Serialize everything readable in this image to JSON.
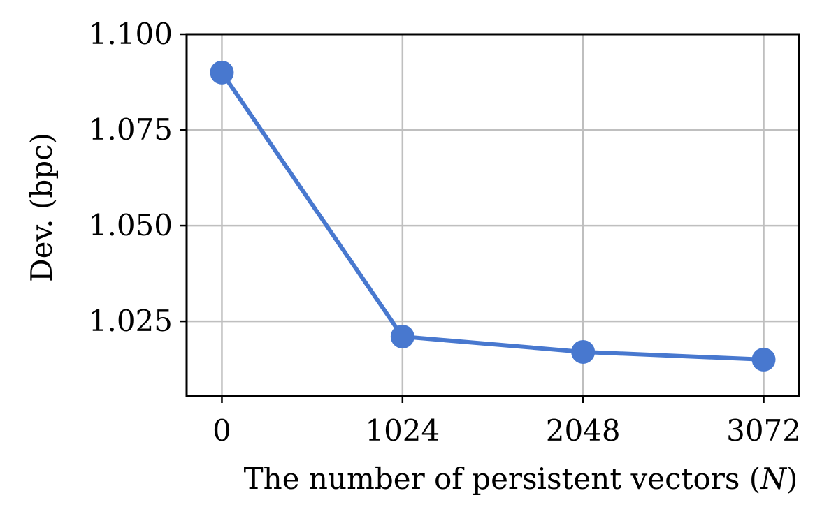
{
  "chart_data": {
    "type": "line",
    "title": "",
    "x": [
      0,
      1024,
      2048,
      3072
    ],
    "x_tick_labels": [
      "0",
      "1024",
      "2048",
      "3072"
    ],
    "xlabel": {
      "prefix": "The number of persistent vectors (",
      "variable": "N",
      "suffix": ")"
    },
    "ylabel": "Dev. (bpc)",
    "y_ticks": [
      1.025,
      1.05,
      1.075,
      1.1
    ],
    "y_tick_labels": [
      "1.025",
      "1.050",
      "1.075",
      "1.100"
    ],
    "xlim": [
      -200,
      3272
    ],
    "ylim": [
      1.0055,
      1.1
    ],
    "grid": true,
    "legend": "none",
    "series": [
      {
        "values": [
          1.09,
          1.021,
          1.017,
          1.015
        ],
        "color": "#4878CF",
        "marker": "circle"
      }
    ]
  }
}
